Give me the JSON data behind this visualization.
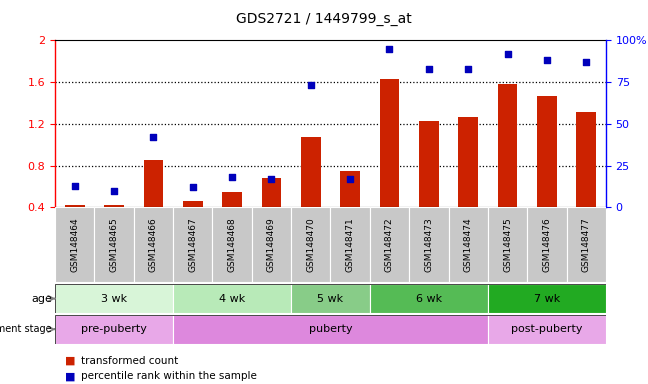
{
  "title": "GDS2721 / 1449799_s_at",
  "samples": [
    "GSM148464",
    "GSM148465",
    "GSM148466",
    "GSM148467",
    "GSM148468",
    "GSM148469",
    "GSM148470",
    "GSM148471",
    "GSM148472",
    "GSM148473",
    "GSM148474",
    "GSM148475",
    "GSM148476",
    "GSM148477"
  ],
  "bar_values": [
    0.42,
    0.42,
    0.85,
    0.46,
    0.55,
    0.68,
    1.07,
    0.75,
    1.63,
    1.23,
    1.27,
    1.58,
    1.47,
    1.31
  ],
  "dot_values_pct": [
    13,
    10,
    42,
    12,
    18,
    17,
    73,
    17,
    95,
    83,
    83,
    92,
    88,
    87
  ],
  "ylim_left": [
    0.4,
    2.0
  ],
  "yticks_left": [
    0.4,
    0.8,
    1.2,
    1.6,
    2.0
  ],
  "ylim_right": [
    0,
    100
  ],
  "yticks_right": [
    0,
    25,
    50,
    75,
    100
  ],
  "yticklabels_right": [
    "0",
    "25",
    "50",
    "75",
    "100%"
  ],
  "bar_color": "#cc2200",
  "dot_color": "#0000bb",
  "bar_bottom": 0.4,
  "age_groups": [
    {
      "label": "3 wk",
      "start": 0,
      "end": 3,
      "color": "#d8f5d8"
    },
    {
      "label": "4 wk",
      "start": 3,
      "end": 6,
      "color": "#b8eab8"
    },
    {
      "label": "5 wk",
      "start": 6,
      "end": 8,
      "color": "#88cc88"
    },
    {
      "label": "6 wk",
      "start": 8,
      "end": 11,
      "color": "#55bb55"
    },
    {
      "label": "7 wk",
      "start": 11,
      "end": 14,
      "color": "#22aa22"
    }
  ],
  "dev_groups": [
    {
      "label": "pre-puberty",
      "start": 0,
      "end": 3,
      "color": "#e8a8e8"
    },
    {
      "label": "puberty",
      "start": 3,
      "end": 11,
      "color": "#dd88dd"
    },
    {
      "label": "post-puberty",
      "start": 11,
      "end": 14,
      "color": "#e8a8e8"
    }
  ],
  "plot_bg_color": "#ffffff",
  "label_bg_color": "#c8c8c8",
  "grid_yticks": [
    0.8,
    1.2,
    1.6
  ]
}
